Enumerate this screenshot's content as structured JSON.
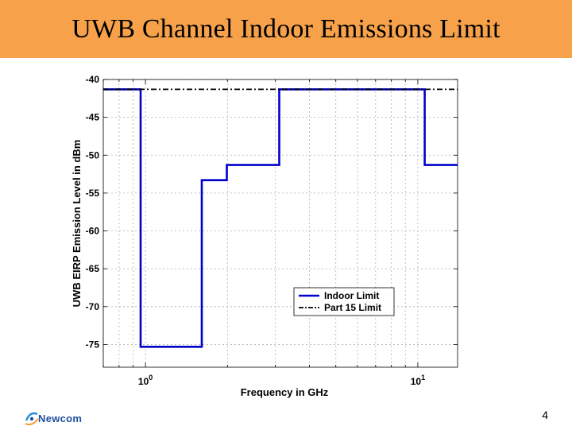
{
  "slide": {
    "title": "UWB Channel Indoor Emissions Limit",
    "page_number": "4",
    "logo_text": "Newcom",
    "title_bar_color": "#f7a24a"
  },
  "chart_data": {
    "type": "line",
    "xscale": "log",
    "xlabel": "Frequency in GHz",
    "ylabel": "UWB EIRP Emission Level in dBm",
    "xlim": [
      0.7,
      14
    ],
    "ylim": [
      -78,
      -40
    ],
    "yticks": [
      -40,
      -45,
      -50,
      -55,
      -60,
      -65,
      -70,
      -75
    ],
    "xticks": [
      {
        "value": 1,
        "base": "10",
        "exp": "0"
      },
      {
        "value": 10,
        "base": "10",
        "exp": "1"
      }
    ],
    "grid": true,
    "legend_position": "lower-right",
    "series": [
      {
        "name": "Indoor Limit",
        "color": "#0000cc",
        "style": "solid",
        "x": [
          0.7,
          0.96,
          0.96,
          1.61,
          1.61,
          1.99,
          1.99,
          3.1,
          3.1,
          10.6,
          10.6,
          14
        ],
        "y": [
          -41.3,
          -41.3,
          -75.3,
          -75.3,
          -53.3,
          -53.3,
          -51.3,
          -51.3,
          -41.3,
          -41.3,
          -51.3,
          -51.3
        ]
      },
      {
        "name": "Part 15 Limit",
        "color": "#000000",
        "style": "dashdot",
        "x": [
          0.7,
          14
        ],
        "y": [
          -41.3,
          -41.3
        ]
      }
    ]
  }
}
